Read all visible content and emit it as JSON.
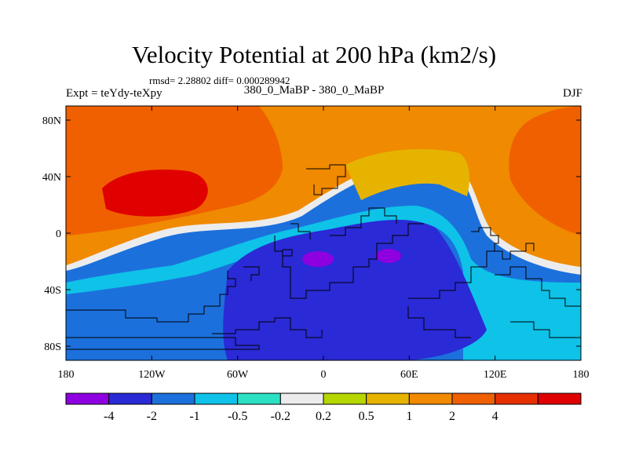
{
  "title": "Velocity Potential at 200 hPa (km2/s)",
  "stats": "rmsd= 2.28802 diff= 0.000289942",
  "experiment": "Expt = teYdy-teXpy",
  "case": "380_0_MaBP - 380_0_MaBP",
  "season": "DJF",
  "map": {
    "lat_ticks": [
      "80N",
      "40N",
      "0",
      "40S",
      "80S"
    ],
    "lon_ticks": [
      "180",
      "120W",
      "60W",
      "0",
      "60E",
      "120E",
      "180"
    ]
  },
  "colorbar": {
    "colors": [
      "#8e00e0",
      "#2a2ad6",
      "#1c70dc",
      "#0ec2e8",
      "#2ce0c4",
      "#ececec",
      "#b6d600",
      "#e6b400",
      "#f08a00",
      "#f06000",
      "#e63000",
      "#e00000"
    ],
    "labels": [
      "-4",
      "-2",
      "-1",
      "-0.5",
      "-0.2",
      "0.2",
      "0.5",
      "1",
      "2",
      "4"
    ]
  }
}
